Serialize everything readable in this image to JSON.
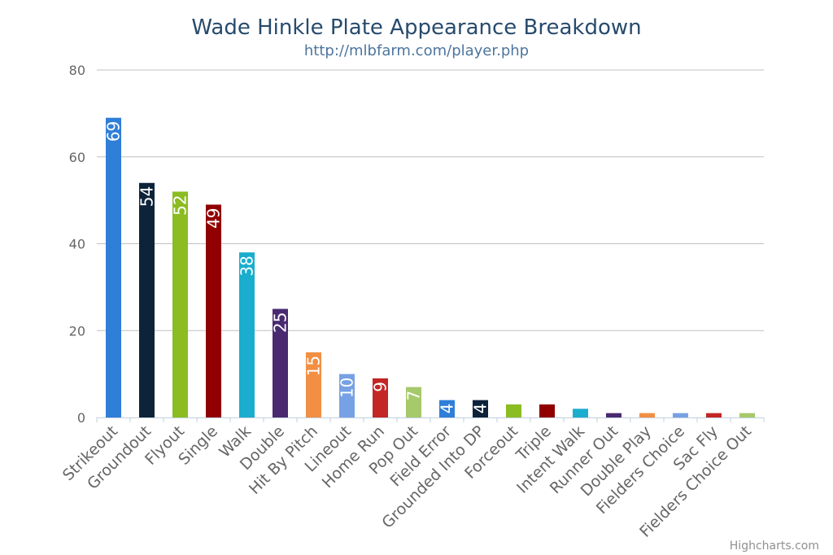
{
  "chart_data": {
    "type": "bar",
    "title": "Wade Hinkle Plate Appearance Breakdown",
    "subtitle": "http://mlbfarm.com/player.php",
    "categories": [
      "Strikeout",
      "Groundout",
      "Flyout",
      "Single",
      "Walk",
      "Double",
      "Hit By Pitch",
      "Lineout",
      "Home Run",
      "Pop Out",
      "Field Error",
      "Grounded Into DP",
      "Forceout",
      "Triple",
      "Intent Walk",
      "Runner Out",
      "Double Play",
      "Fielders Choice",
      "Sac Fly",
      "Fielders Choice Out"
    ],
    "values": [
      69,
      54,
      52,
      49,
      38,
      25,
      15,
      10,
      9,
      7,
      4,
      4,
      3,
      3,
      2,
      1,
      1,
      1,
      1,
      1
    ],
    "data_labels": [
      "69",
      "54",
      "52",
      "49",
      "38",
      "25",
      "15",
      "10",
      "9",
      "7",
      "4",
      "4",
      "",
      "",
      "",
      "",
      "",
      "",
      "",
      ""
    ],
    "colors": [
      "#2f7ed8",
      "#0d233a",
      "#8bbc21",
      "#910000",
      "#1aadce",
      "#492970",
      "#f28f43",
      "#77a1e5",
      "#c42525",
      "#a6c96a",
      "#2f7ed8",
      "#0d233a",
      "#8bbc21",
      "#910000",
      "#1aadce",
      "#492970",
      "#f28f43",
      "#77a1e5",
      "#c42525",
      "#a6c96a"
    ],
    "ylim": [
      0,
      80
    ],
    "yticks": [
      0,
      20,
      40,
      60,
      80
    ],
    "grid": true,
    "legend": "none",
    "xlabel": "",
    "ylabel": ""
  },
  "credits": "Highcharts.com"
}
